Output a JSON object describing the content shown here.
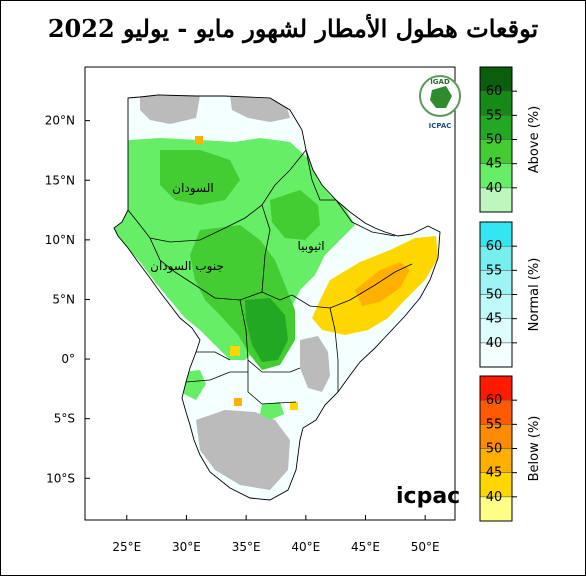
{
  "title": "توقعات هطول الأمطار لشهور مايو - يوليو 2022",
  "brand": {
    "text": "icpac",
    "logo_top": "IGAD",
    "logo_bottom": "ICPAC"
  },
  "axes": {
    "lat_ticks": [
      {
        "value": 20,
        "label": "20°N"
      },
      {
        "value": 15,
        "label": "15°N"
      },
      {
        "value": 10,
        "label": "10°N"
      },
      {
        "value": 5,
        "label": "5°N"
      },
      {
        "value": 0,
        "label": "0°"
      },
      {
        "value": -5,
        "label": "5°S"
      },
      {
        "value": -10,
        "label": "10°S"
      }
    ],
    "lon_ticks": [
      {
        "value": 25,
        "label": "25°E"
      },
      {
        "value": 30,
        "label": "30°E"
      },
      {
        "value": 35,
        "label": "35°E"
      },
      {
        "value": 40,
        "label": "40°E"
      },
      {
        "value": 45,
        "label": "45°E"
      },
      {
        "value": 50,
        "label": "50°E"
      }
    ],
    "lon_range": [
      21.5,
      52.5
    ],
    "lat_range": [
      -13.5,
      24.5
    ]
  },
  "country_labels": {
    "sudan": "السودان",
    "south_sudan": "جنوب السودان",
    "ethiopia": "اثيوبيا"
  },
  "legend": [
    {
      "title": "Above (%)",
      "levels": [
        "40",
        "45",
        "50",
        "55",
        "60"
      ],
      "colors": [
        "#bdf7bd",
        "#66ee66",
        "#44cc33",
        "#22a822",
        "#168a16",
        "#0b5e0b"
      ]
    },
    {
      "title": "Normal (%)",
      "levels": [
        "40",
        "45",
        "50",
        "55",
        "60"
      ],
      "colors": [
        "#f4ffff",
        "#ddfcfc",
        "#bff9f9",
        "#9ef4f4",
        "#77efef",
        "#33e6f2"
      ]
    },
    {
      "title": "Below (%)",
      "levels": [
        "40",
        "45",
        "50",
        "55",
        "60"
      ],
      "colors": [
        "#ffff88",
        "#ffd700",
        "#ffb000",
        "#ff8c00",
        "#ff5a00",
        "#ff1a00"
      ]
    }
  ],
  "colors": {
    "green_45": "#66ee66",
    "green_50": "#44cc33",
    "green_55": "#22a822",
    "normal_40": "#f4ffff",
    "below_40": "#ffd700",
    "below_45": "#ffb000",
    "no_data": "#bbbbbb",
    "border": "#000000"
  }
}
